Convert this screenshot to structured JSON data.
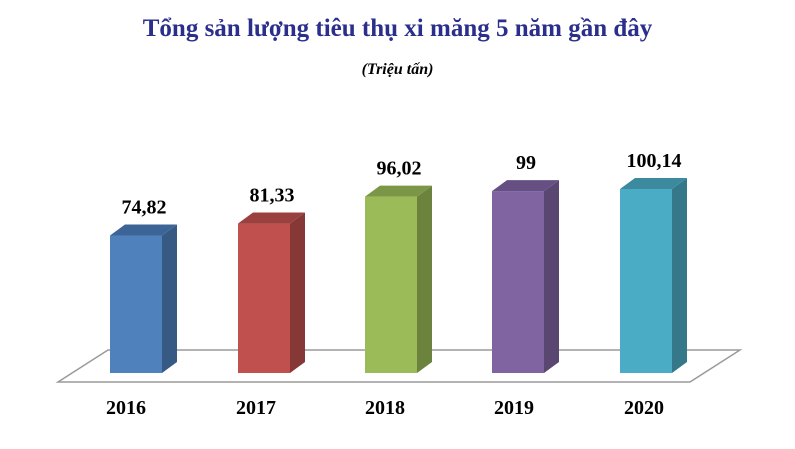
{
  "chart_data": {
    "type": "bar",
    "title": "Tổng sản lượng tiêu thụ xi măng 5 năm gần đây",
    "subtitle": "(Triệu tấn)",
    "categories": [
      "2016",
      "2017",
      "2018",
      "2019",
      "2020"
    ],
    "values": [
      74.82,
      81.33,
      96.02,
      99,
      100.14
    ],
    "value_labels": [
      "74,82",
      "81,33",
      "96,02",
      "99",
      "100,14"
    ],
    "colors": [
      "#4f81bd",
      "#c0504d",
      "#9bbb59",
      "#8064a2",
      "#4bacc6"
    ],
    "side_colors": [
      "#375a84",
      "#863836",
      "#6c833e",
      "#594671",
      "#34788a"
    ],
    "top_colors": [
      "#3d6496",
      "#9a403e",
      "#7c9647",
      "#664f82",
      "#3c8a9e"
    ],
    "ylim": [
      0,
      100.14
    ],
    "grid": false,
    "legend": "none"
  }
}
